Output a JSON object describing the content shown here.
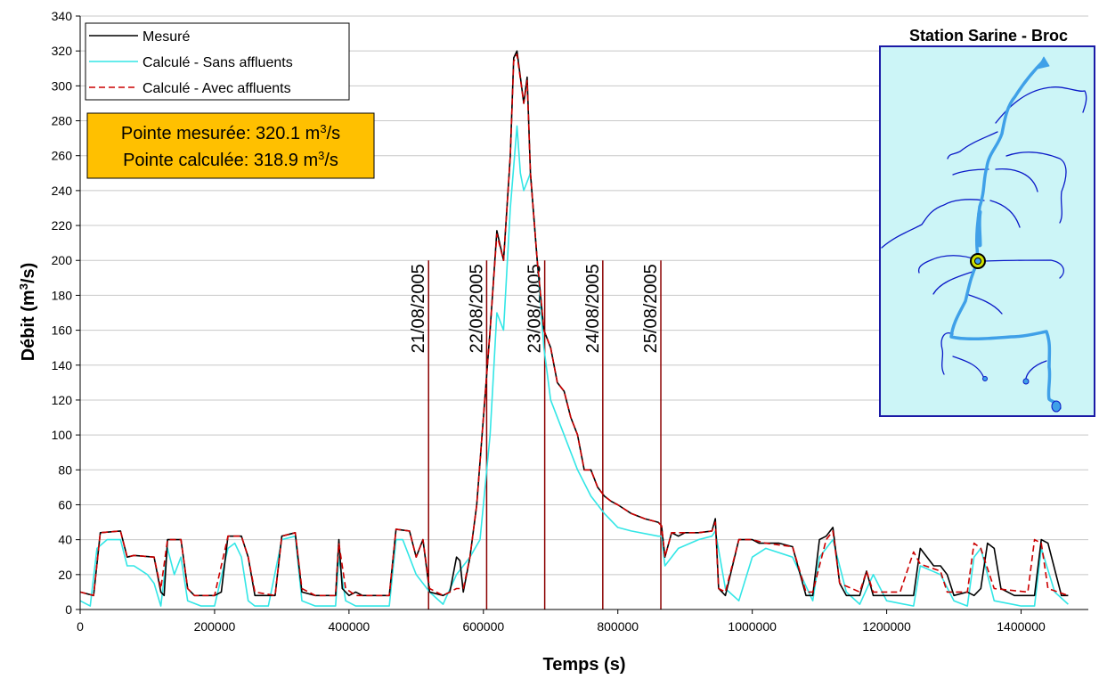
{
  "chart_data": {
    "type": "line",
    "xlabel": "Temps (s)",
    "ylabel_main": "Débit (m",
    "ylabel_sup": "3",
    "ylabel_end": "/s)",
    "xlim": [
      0,
      1500000
    ],
    "ylim": [
      0,
      340
    ],
    "x_ticks": [
      0,
      200000,
      400000,
      600000,
      800000,
      1000000,
      1200000,
      1400000
    ],
    "x_tick_labels": [
      "0",
      "200000",
      "400000",
      "600000",
      "800000",
      "1000000",
      "1200000",
      "1400000"
    ],
    "y_ticks": [
      0,
      20,
      40,
      60,
      80,
      100,
      120,
      140,
      160,
      180,
      200,
      220,
      240,
      260,
      280,
      300,
      320,
      340
    ],
    "y_tick_labels": [
      "0",
      "20",
      "40",
      "60",
      "80",
      "100",
      "120",
      "140",
      "160",
      "180",
      "200",
      "220",
      "240",
      "260",
      "280",
      "300",
      "320",
      "340"
    ],
    "grid": true,
    "legend_position": "top-left",
    "series": [
      {
        "name": "Mesuré",
        "color": "#000000",
        "style": "solid",
        "x": [
          0,
          20000,
          30000,
          60000,
          70000,
          80000,
          110000,
          120000,
          125000,
          130000,
          150000,
          160000,
          170000,
          190000,
          200000,
          210000,
          220000,
          240000,
          250000,
          260000,
          290000,
          300000,
          320000,
          330000,
          350000,
          380000,
          385000,
          390000,
          400000,
          410000,
          420000,
          460000,
          470000,
          490000,
          500000,
          510000,
          520000,
          540000,
          550000,
          560000,
          565000,
          570000,
          580000,
          590000,
          600000,
          610000,
          620000,
          630000,
          640000,
          645000,
          650000,
          660000,
          665000,
          670000,
          680000,
          690000,
          700000,
          710000,
          720000,
          730000,
          740000,
          750000,
          760000,
          770000,
          780000,
          790000,
          800000,
          820000,
          840000,
          860000,
          865000,
          870000,
          880000,
          890000,
          900000,
          920000,
          940000,
          945000,
          950000,
          960000,
          980000,
          1000000,
          1010000,
          1020000,
          1040000,
          1060000,
          1080000,
          1090000,
          1100000,
          1110000,
          1120000,
          1130000,
          1140000,
          1160000,
          1170000,
          1180000,
          1200000,
          1220000,
          1240000,
          1250000,
          1270000,
          1280000,
          1290000,
          1300000,
          1320000,
          1330000,
          1340000,
          1350000,
          1360000,
          1370000,
          1390000,
          1410000,
          1420000,
          1430000,
          1440000,
          1460000,
          1470000
        ],
        "y": [
          10,
          8,
          44,
          45,
          30,
          31,
          30,
          10,
          8,
          40,
          40,
          12,
          8,
          8,
          8,
          10,
          42,
          42,
          30,
          8,
          8,
          42,
          44,
          10,
          8,
          8,
          40,
          12,
          8,
          10,
          8,
          8,
          46,
          45,
          30,
          40,
          10,
          8,
          10,
          30,
          28,
          10,
          30,
          60,
          110,
          160,
          217,
          200,
          260,
          316,
          320,
          290,
          305,
          250,
          200,
          160,
          150,
          130,
          125,
          110,
          100,
          80,
          80,
          70,
          65,
          62,
          60,
          55,
          52,
          50,
          48,
          30,
          44,
          42,
          44,
          44,
          45,
          52,
          12,
          8,
          40,
          40,
          38,
          38,
          38,
          36,
          8,
          8,
          40,
          42,
          47,
          15,
          8,
          8,
          22,
          8,
          8,
          8,
          8,
          35,
          25,
          25,
          20,
          8,
          10,
          8,
          12,
          38,
          35,
          12,
          8,
          8,
          8,
          40,
          38,
          8,
          8
        ]
      },
      {
        "name": "Calculé - Sans affluents",
        "color": "#33e6e6",
        "style": "solid",
        "x": [
          0,
          15000,
          25000,
          40000,
          60000,
          70000,
          80000,
          100000,
          110000,
          120000,
          130000,
          140000,
          150000,
          160000,
          180000,
          200000,
          220000,
          230000,
          240000,
          250000,
          260000,
          280000,
          300000,
          320000,
          330000,
          350000,
          380000,
          385000,
          395000,
          410000,
          460000,
          470000,
          480000,
          500000,
          520000,
          540000,
          560000,
          580000,
          595000,
          610000,
          620000,
          630000,
          640000,
          650000,
          655000,
          660000,
          670000,
          675000,
          680000,
          690000,
          700000,
          720000,
          740000,
          760000,
          780000,
          800000,
          820000,
          860000,
          865000,
          870000,
          890000,
          920000,
          940000,
          945000,
          960000,
          980000,
          1000000,
          1020000,
          1060000,
          1090000,
          1100000,
          1120000,
          1140000,
          1160000,
          1180000,
          1200000,
          1240000,
          1250000,
          1280000,
          1300000,
          1320000,
          1330000,
          1340000,
          1360000,
          1400000,
          1420000,
          1430000,
          1450000,
          1470000
        ],
        "y": [
          5,
          2,
          35,
          40,
          40,
          25,
          25,
          20,
          15,
          2,
          35,
          20,
          30,
          5,
          2,
          2,
          35,
          38,
          30,
          5,
          2,
          2,
          40,
          42,
          5,
          2,
          2,
          30,
          5,
          2,
          2,
          40,
          40,
          20,
          10,
          3,
          20,
          30,
          40,
          100,
          170,
          160,
          230,
          277,
          250,
          240,
          250,
          225,
          200,
          150,
          120,
          100,
          80,
          65,
          55,
          47,
          45,
          42,
          42,
          25,
          35,
          40,
          42,
          45,
          12,
          5,
          30,
          35,
          30,
          5,
          30,
          40,
          10,
          3,
          20,
          5,
          2,
          25,
          20,
          5,
          2,
          30,
          35,
          5,
          2,
          2,
          35,
          10,
          3
        ]
      },
      {
        "name": "Calculé - Avec affluents",
        "color": "#cc0000",
        "style": "dashed",
        "x": [
          0,
          20000,
          30000,
          60000,
          70000,
          80000,
          110000,
          120000,
          130000,
          150000,
          160000,
          170000,
          200000,
          220000,
          240000,
          250000,
          260000,
          290000,
          300000,
          320000,
          330000,
          350000,
          380000,
          385000,
          395000,
          410000,
          460000,
          470000,
          490000,
          500000,
          510000,
          520000,
          540000,
          560000,
          570000,
          580000,
          590000,
          600000,
          610000,
          620000,
          630000,
          640000,
          645000,
          650000,
          660000,
          665000,
          670000,
          680000,
          690000,
          700000,
          710000,
          720000,
          730000,
          740000,
          750000,
          760000,
          770000,
          780000,
          790000,
          800000,
          820000,
          840000,
          860000,
          865000,
          870000,
          880000,
          900000,
          920000,
          940000,
          945000,
          950000,
          960000,
          980000,
          1000000,
          1020000,
          1060000,
          1080000,
          1090000,
          1110000,
          1120000,
          1130000,
          1160000,
          1170000,
          1180000,
          1220000,
          1240000,
          1250000,
          1280000,
          1290000,
          1300000,
          1320000,
          1330000,
          1340000,
          1360000,
          1410000,
          1420000,
          1430000,
          1440000,
          1470000
        ],
        "y": [
          10,
          8,
          44,
          45,
          30,
          31,
          30,
          12,
          40,
          40,
          12,
          8,
          8,
          42,
          42,
          30,
          10,
          8,
          42,
          44,
          12,
          8,
          8,
          38,
          12,
          8,
          8,
          46,
          45,
          30,
          40,
          12,
          8,
          12,
          12,
          30,
          60,
          110,
          160,
          215,
          200,
          260,
          314,
          318,
          290,
          303,
          250,
          200,
          160,
          150,
          130,
          125,
          110,
          100,
          80,
          80,
          70,
          65,
          62,
          60,
          55,
          52,
          50,
          48,
          30,
          44,
          44,
          44,
          45,
          50,
          12,
          10,
          40,
          40,
          38,
          36,
          10,
          10,
          40,
          45,
          15,
          10,
          22,
          10,
          10,
          33,
          26,
          22,
          10,
          10,
          10,
          38,
          35,
          12,
          10,
          40,
          38,
          12,
          8
        ]
      }
    ],
    "date_markers": [
      {
        "x": 518400,
        "label": "21/08/2005"
      },
      {
        "x": 604800,
        "label": "22/08/2005"
      },
      {
        "x": 691200,
        "label": "23/08/2005"
      },
      {
        "x": 777600,
        "label": "24/08/2005"
      },
      {
        "x": 864000,
        "label": "25/08/2005"
      }
    ],
    "date_marker_top": 200,
    "date_marker_color": "#8b0000",
    "annotation_box": {
      "line1_prefix": "Pointe mesurée: 320.1 m",
      "line1_sup": "3",
      "line1_suffix": "/s",
      "line2_prefix": "Pointe calculée: 318.9 m",
      "line2_sup": "3",
      "line2_suffix": "/s",
      "fill": "#ffc000"
    },
    "inset": {
      "title": "Station Sarine - Broc",
      "background": "#ccf5f7",
      "border": "#1a1aa6"
    }
  }
}
